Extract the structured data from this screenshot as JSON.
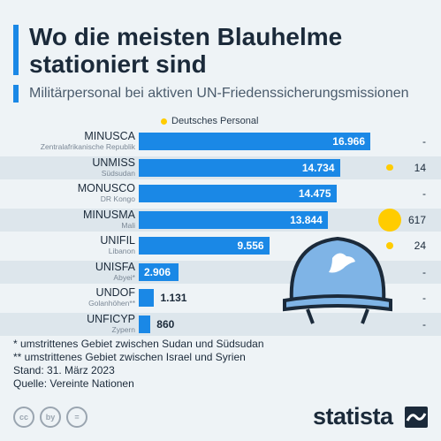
{
  "title": "Wo die meisten Blauhelme stationiert sind",
  "subtitle": "Militärpersonal bei aktiven UN-Friedenssicherungsmissionen",
  "legend_label": "Deutsches Personal",
  "colors": {
    "bar": "#1a88e6",
    "german": "#ffcc00",
    "accent": "#1a88e6"
  },
  "rows": [
    {
      "mission": "MINUSCA",
      "region": "Zentralafrikanische Republik",
      "value_label": "16.966",
      "german_label": "-"
    },
    {
      "mission": "UNMISS",
      "region": "Südsudan",
      "value_label": "14.734",
      "german_label": "14"
    },
    {
      "mission": "MONUSCO",
      "region": "DR Kongo",
      "value_label": "14.475",
      "german_label": "-"
    },
    {
      "mission": "MINUSMA",
      "region": "Mali",
      "value_label": "13.844",
      "german_label": "617"
    },
    {
      "mission": "UNIFIL",
      "region": "Libanon",
      "value_label": "9.556",
      "german_label": "24"
    },
    {
      "mission": "UNISFA",
      "region": "Abyei*",
      "value_label": "2.906",
      "german_label": "-"
    },
    {
      "mission": "UNDOF",
      "region": "Golanhöhen**",
      "value_label": "1.131",
      "german_label": "-"
    },
    {
      "mission": "UNFICYP",
      "region": "Zypern",
      "value_label": "860",
      "german_label": "-"
    }
  ],
  "chart_data": {
    "type": "bar",
    "orientation": "horizontal",
    "categories": [
      "MINUSCA",
      "UNMISS",
      "MONUSCO",
      "MINUSMA",
      "UNIFIL",
      "UNISFA",
      "UNDOF",
      "UNFICYP"
    ],
    "series": [
      {
        "name": "",
        "values": [
          16966,
          14734,
          14475,
          13844,
          9556,
          2906,
          1131,
          860
        ]
      },
      {
        "name": "Deutsches Personal",
        "values": [
          null,
          14,
          null,
          617,
          24,
          null,
          null,
          null
        ]
      }
    ],
    "xlim": [
      0,
      16966
    ],
    "grid": false,
    "legend": "top"
  },
  "notes": [
    "*   umstrittenes Gebiet zwischen Sudan und Südsudan",
    "** umstrittenes Gebiet zwischen Israel und Syrien",
    "Stand: 31. März 2023",
    "Quelle: Vereinte Nationen"
  ],
  "license_icons": [
    "cc",
    "by",
    "="
  ],
  "brand": "statista"
}
